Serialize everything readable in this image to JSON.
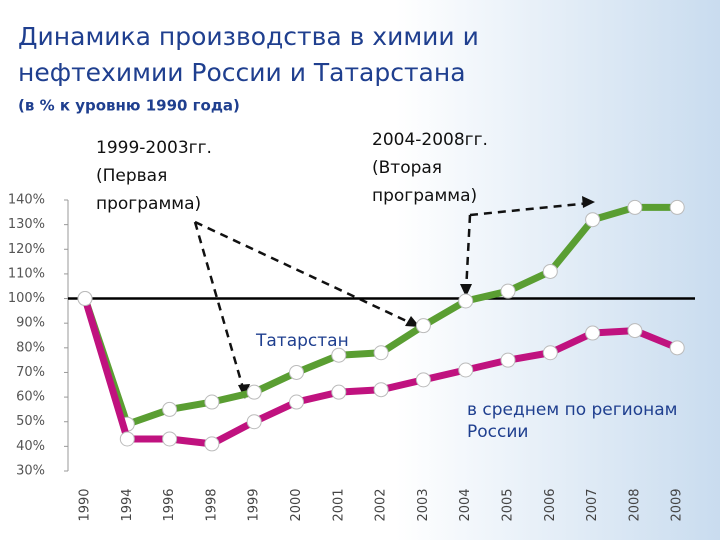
{
  "chart_data": {
    "type": "line",
    "title": [
      "Динамика производства в химии и",
      "нефтехимии России и Татарстана"
    ],
    "subtitle": "(в % к уровню 1990 года)",
    "categories": [
      "1990",
      "1994",
      "1996",
      "1998",
      "1999",
      "2000",
      "2001",
      "2002",
      "2003",
      "2004",
      "2005",
      "2006",
      "2007",
      "2008",
      "2009"
    ],
    "series": [
      {
        "name": "Татарстан",
        "color": "#5a9e32",
        "values": [
          100,
          49,
          55,
          58,
          62,
          70,
          77,
          78,
          89,
          99,
          103,
          111,
          132,
          137,
          137
        ]
      },
      {
        "name": "в среднем по регионам России",
        "color": "#c0127f",
        "values": [
          100,
          43,
          43,
          41,
          50,
          58,
          62,
          63,
          67,
          71,
          75,
          78,
          86,
          87,
          80
        ]
      }
    ],
    "ylim": [
      30,
      140
    ],
    "yticks": [
      {
        "value": 30,
        "label": "30%"
      },
      {
        "value": 40,
        "label": "40%"
      },
      {
        "value": 50,
        "label": "50%"
      },
      {
        "value": 60,
        "label": "60%"
      },
      {
        "value": 70,
        "label": "70%"
      },
      {
        "value": 80,
        "label": "80%"
      },
      {
        "value": 90,
        "label": "90%"
      },
      {
        "value": 100,
        "label": "100%"
      },
      {
        "value": 110,
        "label": "110%"
      },
      {
        "value": 120,
        "label": "120%"
      },
      {
        "value": 130,
        "label": "130%"
      },
      {
        "value": 140,
        "label": "140%"
      }
    ],
    "baseline": 100,
    "annotations": [
      {
        "lines": [
          "1999-2003гг.",
          "(Первая",
          "программа)"
        ]
      },
      {
        "lines": [
          "2004-2008гг.",
          "(Вторая",
          "программа)"
        ]
      }
    ]
  }
}
